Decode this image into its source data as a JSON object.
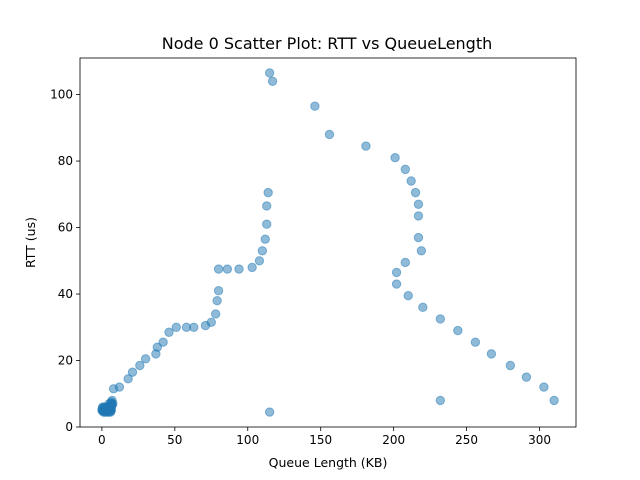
{
  "chart_data": {
    "type": "scatter",
    "title": "Node 0 Scatter Plot: RTT vs QueueLength",
    "xlabel": "Queue Length (KB)",
    "ylabel": "RTT (us)",
    "xlim": [
      -15,
      325
    ],
    "ylim": [
      0,
      111
    ],
    "xticks": [
      0,
      50,
      100,
      150,
      200,
      250,
      300
    ],
    "yticks": [
      0,
      20,
      40,
      60,
      80,
      100
    ],
    "grid": false,
    "legend": "none",
    "marker_color": "#1f77b4",
    "marker_alpha": 0.5,
    "series": [
      {
        "x": [
          0,
          0.5,
          1,
          1.5,
          2,
          2.5,
          3,
          3.5,
          4,
          4.5,
          5,
          5.5,
          6,
          6.5,
          0.5,
          1.5,
          2.5,
          3.5,
          4.5,
          5.5,
          1,
          2,
          3,
          4,
          5,
          6,
          0.3,
          1.2,
          2.2,
          3.2,
          4.2,
          5.2,
          6.2,
          5,
          6,
          6.5,
          7,
          7,
          7.5,
          7,
          6.5,
          8,
          12,
          18,
          21,
          26,
          30,
          37,
          38,
          42,
          46,
          51,
          58,
          63,
          71,
          75,
          78,
          79,
          80,
          80,
          86,
          94,
          103,
          108,
          110,
          112,
          113,
          113,
          114,
          115,
          115,
          117,
          146,
          156,
          181,
          201,
          208,
          212,
          215,
          217,
          217,
          217,
          219,
          208,
          202,
          202,
          210,
          220,
          232,
          244,
          256,
          267,
          280,
          291,
          303,
          310,
          232
        ],
        "y": [
          5,
          5,
          5,
          5,
          5,
          5,
          5,
          5,
          5,
          5,
          5,
          5,
          5,
          5,
          6,
          6,
          6,
          6,
          6,
          6,
          4.5,
          4.5,
          4.5,
          4.5,
          4.5,
          4.5,
          5.5,
          5.5,
          5.5,
          5.5,
          5.5,
          5.5,
          5.5,
          7,
          7,
          7.5,
          7,
          8,
          7,
          6.5,
          6,
          11.5,
          12,
          14.5,
          16.5,
          18.5,
          20.5,
          22,
          24,
          25.5,
          28.5,
          30,
          30,
          30,
          30.5,
          31.5,
          34,
          38,
          41,
          47.5,
          47.5,
          47.5,
          48,
          50,
          53,
          56.5,
          61,
          66.5,
          70.5,
          4.5,
          106.5,
          104,
          96.5,
          88,
          84.5,
          81,
          77.5,
          74,
          70.5,
          67,
          63.5,
          57,
          53,
          49.5,
          46.5,
          43,
          39.5,
          36,
          32.5,
          29,
          25.5,
          22,
          18.5,
          15,
          12,
          8,
          8
        ]
      }
    ]
  }
}
